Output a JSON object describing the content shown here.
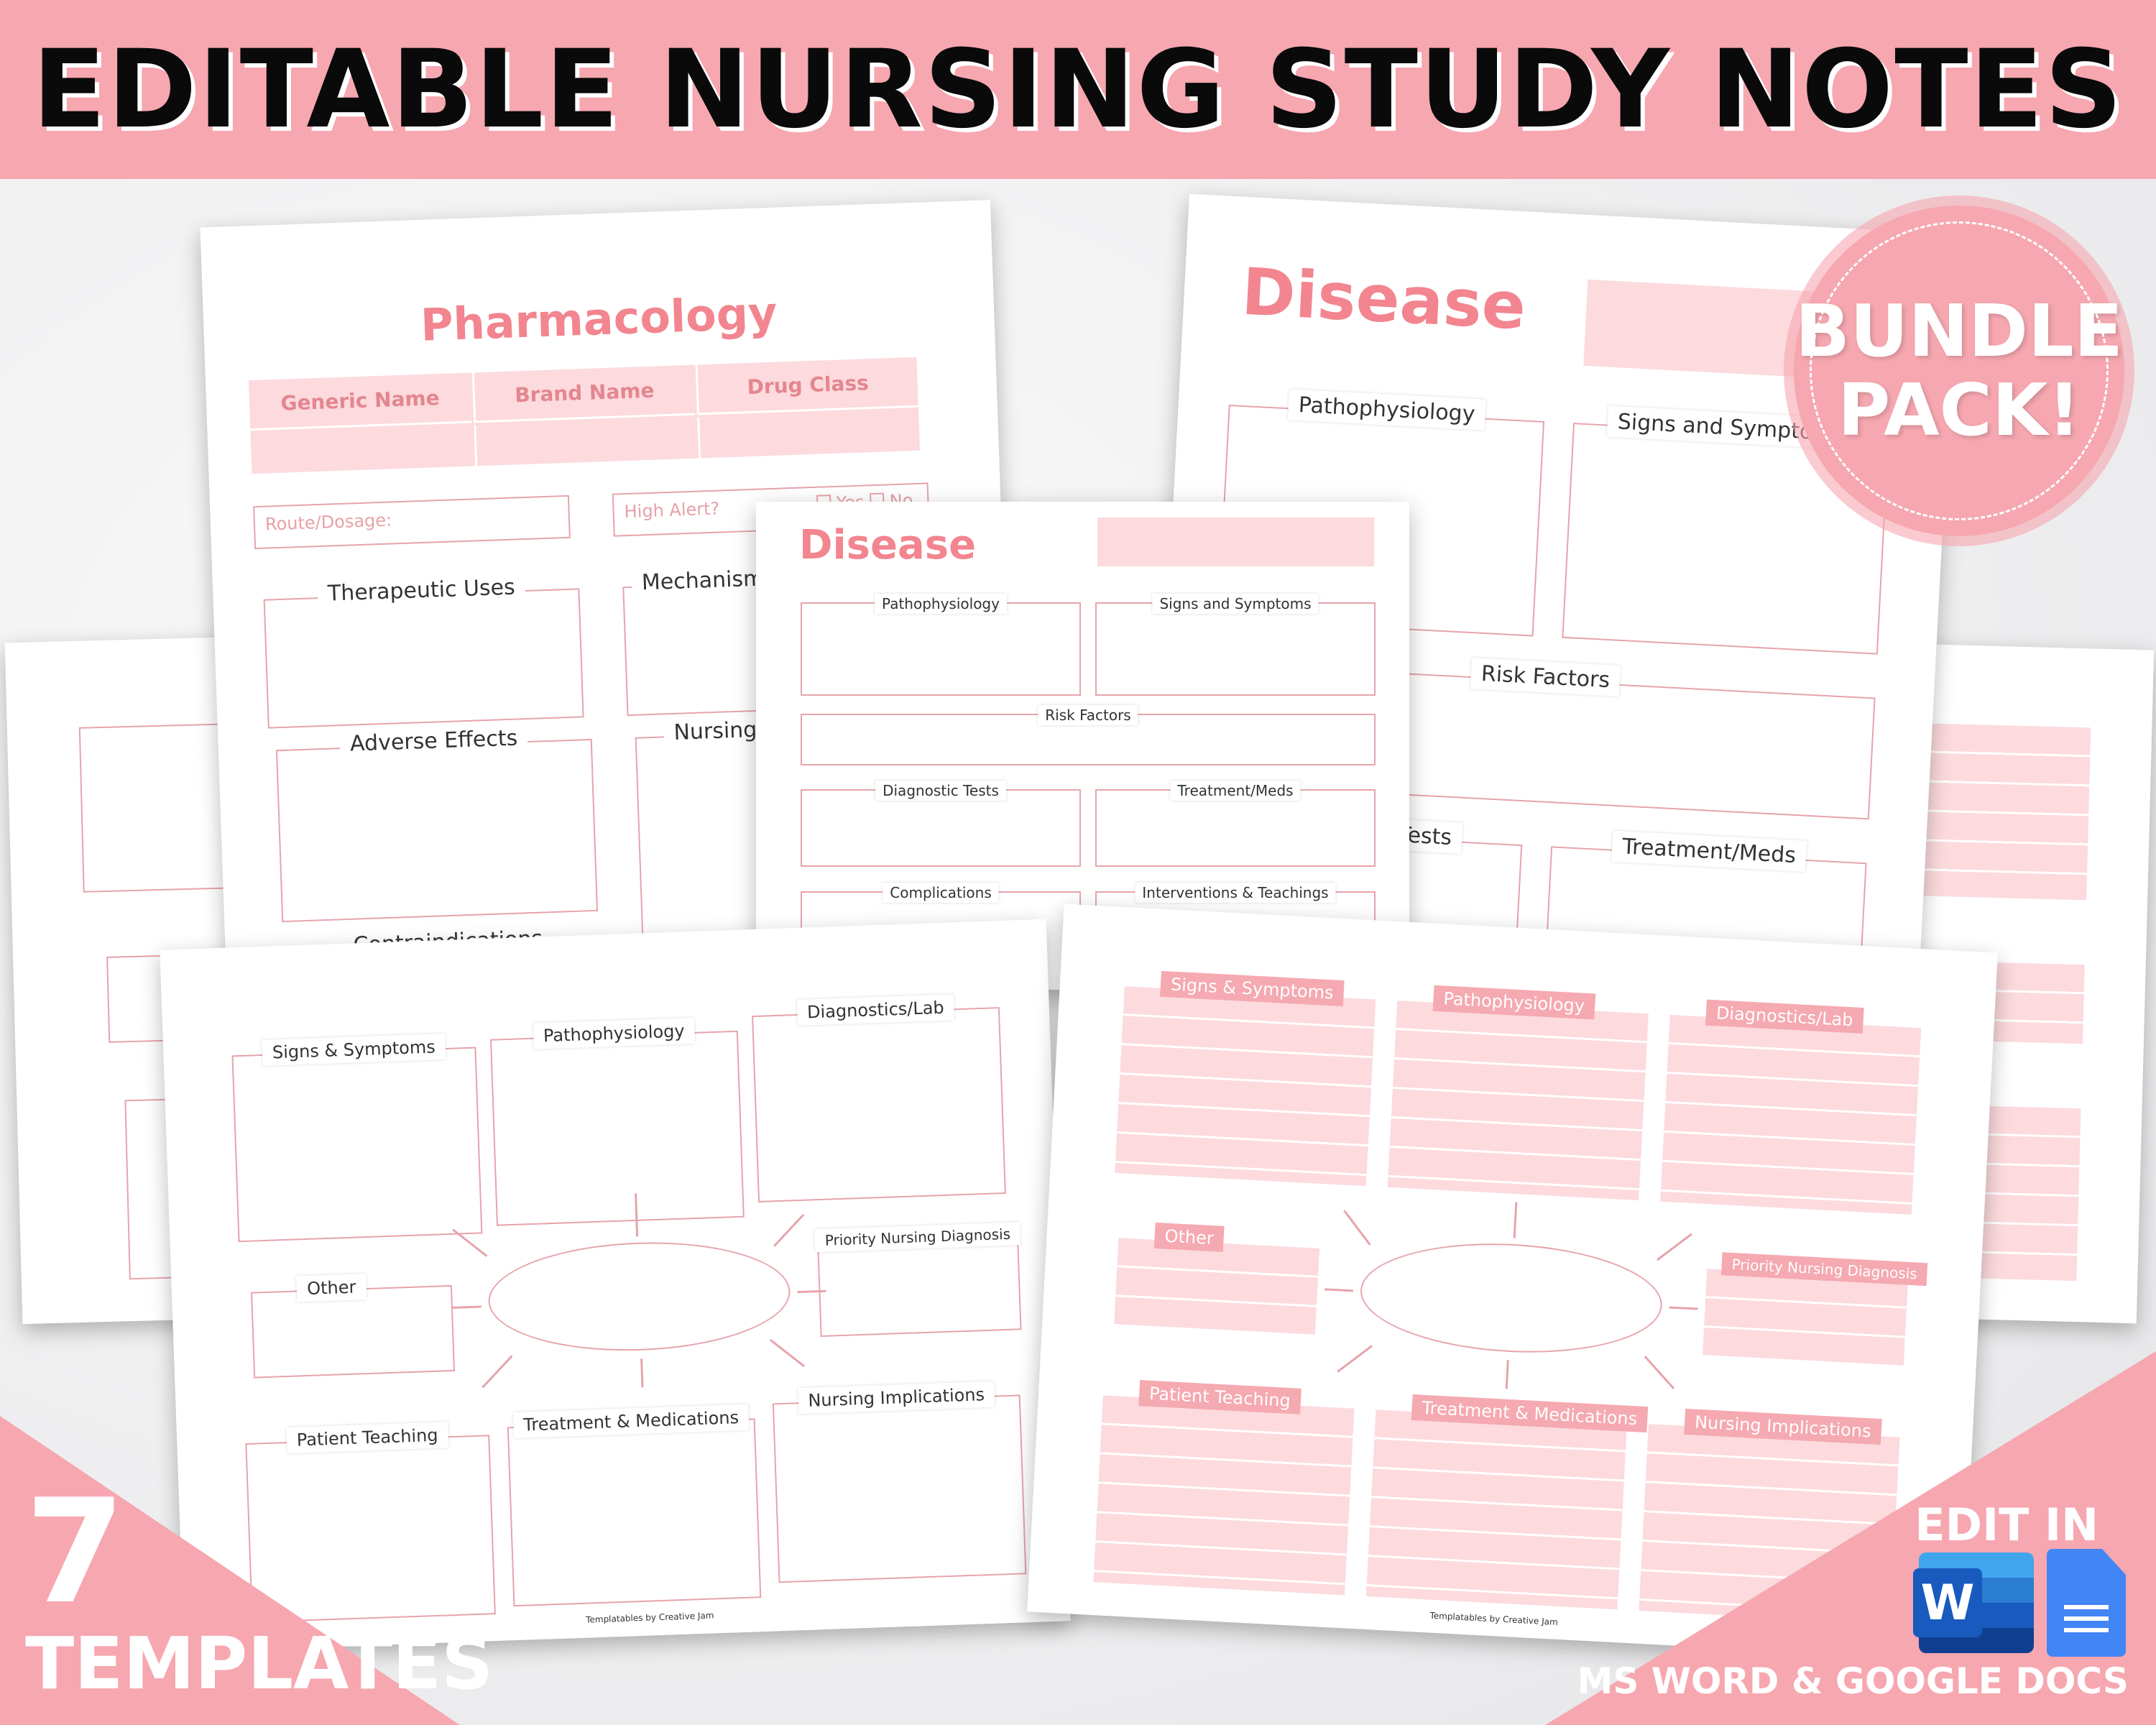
{
  "header": {
    "title": "EDITABLE NURSING STUDY NOTES"
  },
  "colors": {
    "accent": "#f6a7b0",
    "title_pink": "#f2858f",
    "box_fill": "#fcdadd",
    "border": "#e6a4ab"
  },
  "badge": {
    "line1": "BUNDLE",
    "line2": "PACK!"
  },
  "count": {
    "number": "7",
    "label": "TEMPLATES"
  },
  "edit": {
    "label": "EDIT IN",
    "apps": "MS WORD & GOOGLE DOCS",
    "icons": [
      "ms-word-icon",
      "google-docs-icon"
    ],
    "word_letter": "W"
  },
  "pharmacology": {
    "title": "Pharmacology",
    "columns": [
      "Generic Name",
      "Brand Name",
      "Drug Class"
    ],
    "route": "Route/Dosage:",
    "high_alert": "High Alert?",
    "yes": "Yes",
    "no": "No",
    "sections": [
      "Therapeutic Uses",
      "Mechanism",
      "Adverse Effects",
      "Nursing",
      "Contraindications"
    ]
  },
  "disease_large": {
    "title": "Disease",
    "sections": [
      "Pathophysiology",
      "Signs and Symptoms",
      "Risk Factors",
      "Diagnostic Tests",
      "Treatment/Meds"
    ]
  },
  "disease_small": {
    "title": "Disease",
    "sections": [
      "Pathophysiology",
      "Signs and Symptoms",
      "Risk Factors",
      "Diagnostic Tests",
      "Treatment/Meds",
      "Complications",
      "Interventions & Teachings"
    ],
    "footer": "Templatables by Creative Jam"
  },
  "concept_map": {
    "sections": [
      "Signs & Symptoms",
      "Pathophysiology",
      "Diagnostics/Lab",
      "Other",
      "Priority Nursing Diagnosis",
      "Patient Teaching",
      "Treatment & Medications",
      "Nursing Implications"
    ],
    "footer": "Templatables by Creative Jam"
  }
}
